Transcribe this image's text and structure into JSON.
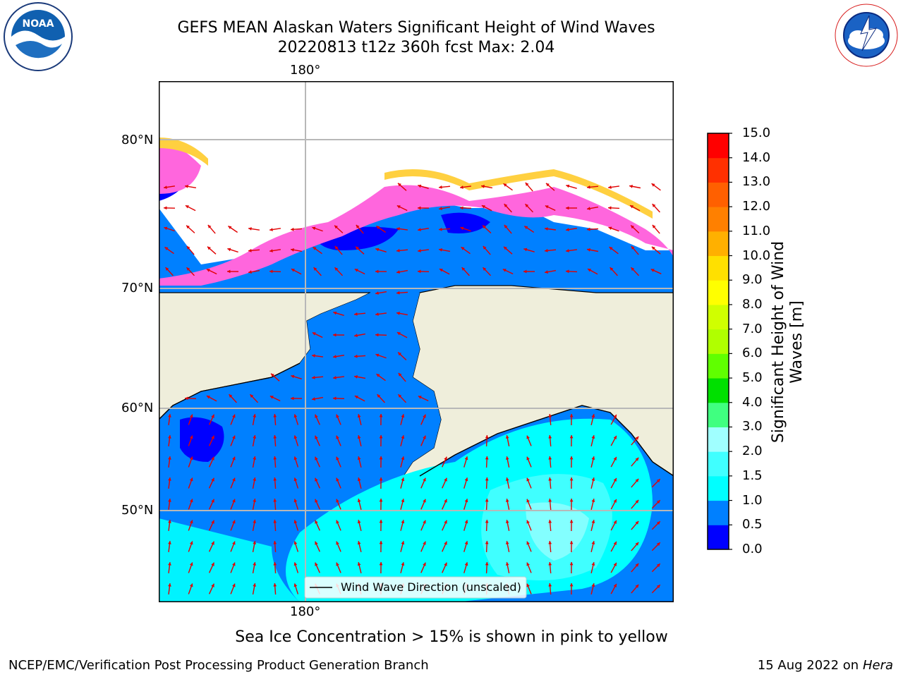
{
  "title": {
    "line1": "GEFS MEAN Alaskan Waters Significant Height of Wind Waves",
    "line2": "20220813 t12z 360h fcst   Max: 2.04"
  },
  "axes": {
    "lon_top": "180°",
    "lon_bottom": "180°",
    "lat_labels": [
      "80°N",
      "70°N",
      "60°N",
      "50°N"
    ]
  },
  "legend": {
    "label": "Wind Wave Direction (unscaled)"
  },
  "colorbar": {
    "label_line1": "Significant Height of Wind",
    "label_line2": "Waves [m]",
    "ticks": [
      "15.0",
      "14.0",
      "13.0",
      "12.0",
      "11.0",
      "10.0",
      "9.0",
      "8.0",
      "7.0",
      "6.0",
      "5.0",
      "4.0",
      "3.0",
      "2.0",
      "1.5",
      "1.0",
      "0.5",
      "0.0"
    ],
    "colors": [
      "#0000ff",
      "#0080ff",
      "#00ffff",
      "#40ffff",
      "#a0ffff",
      "#40ff80",
      "#00e000",
      "#60ff00",
      "#b0ff00",
      "#d0ff00",
      "#ffff00",
      "#ffe000",
      "#ffb000",
      "#ff8000",
      "#ff6000",
      "#ff3000",
      "#ff0000"
    ]
  },
  "caption": "Sea Ice Concentration > 15% is shown in pink to yellow",
  "footer": {
    "left": "NCEP/EMC/Verification Post Processing Product Generation Branch",
    "date": "15 Aug 2022 on",
    "host": "Hera"
  },
  "logos": {
    "noara": "NOAA",
    "nws": "NATIONAL WEATHER SERVICE"
  }
}
